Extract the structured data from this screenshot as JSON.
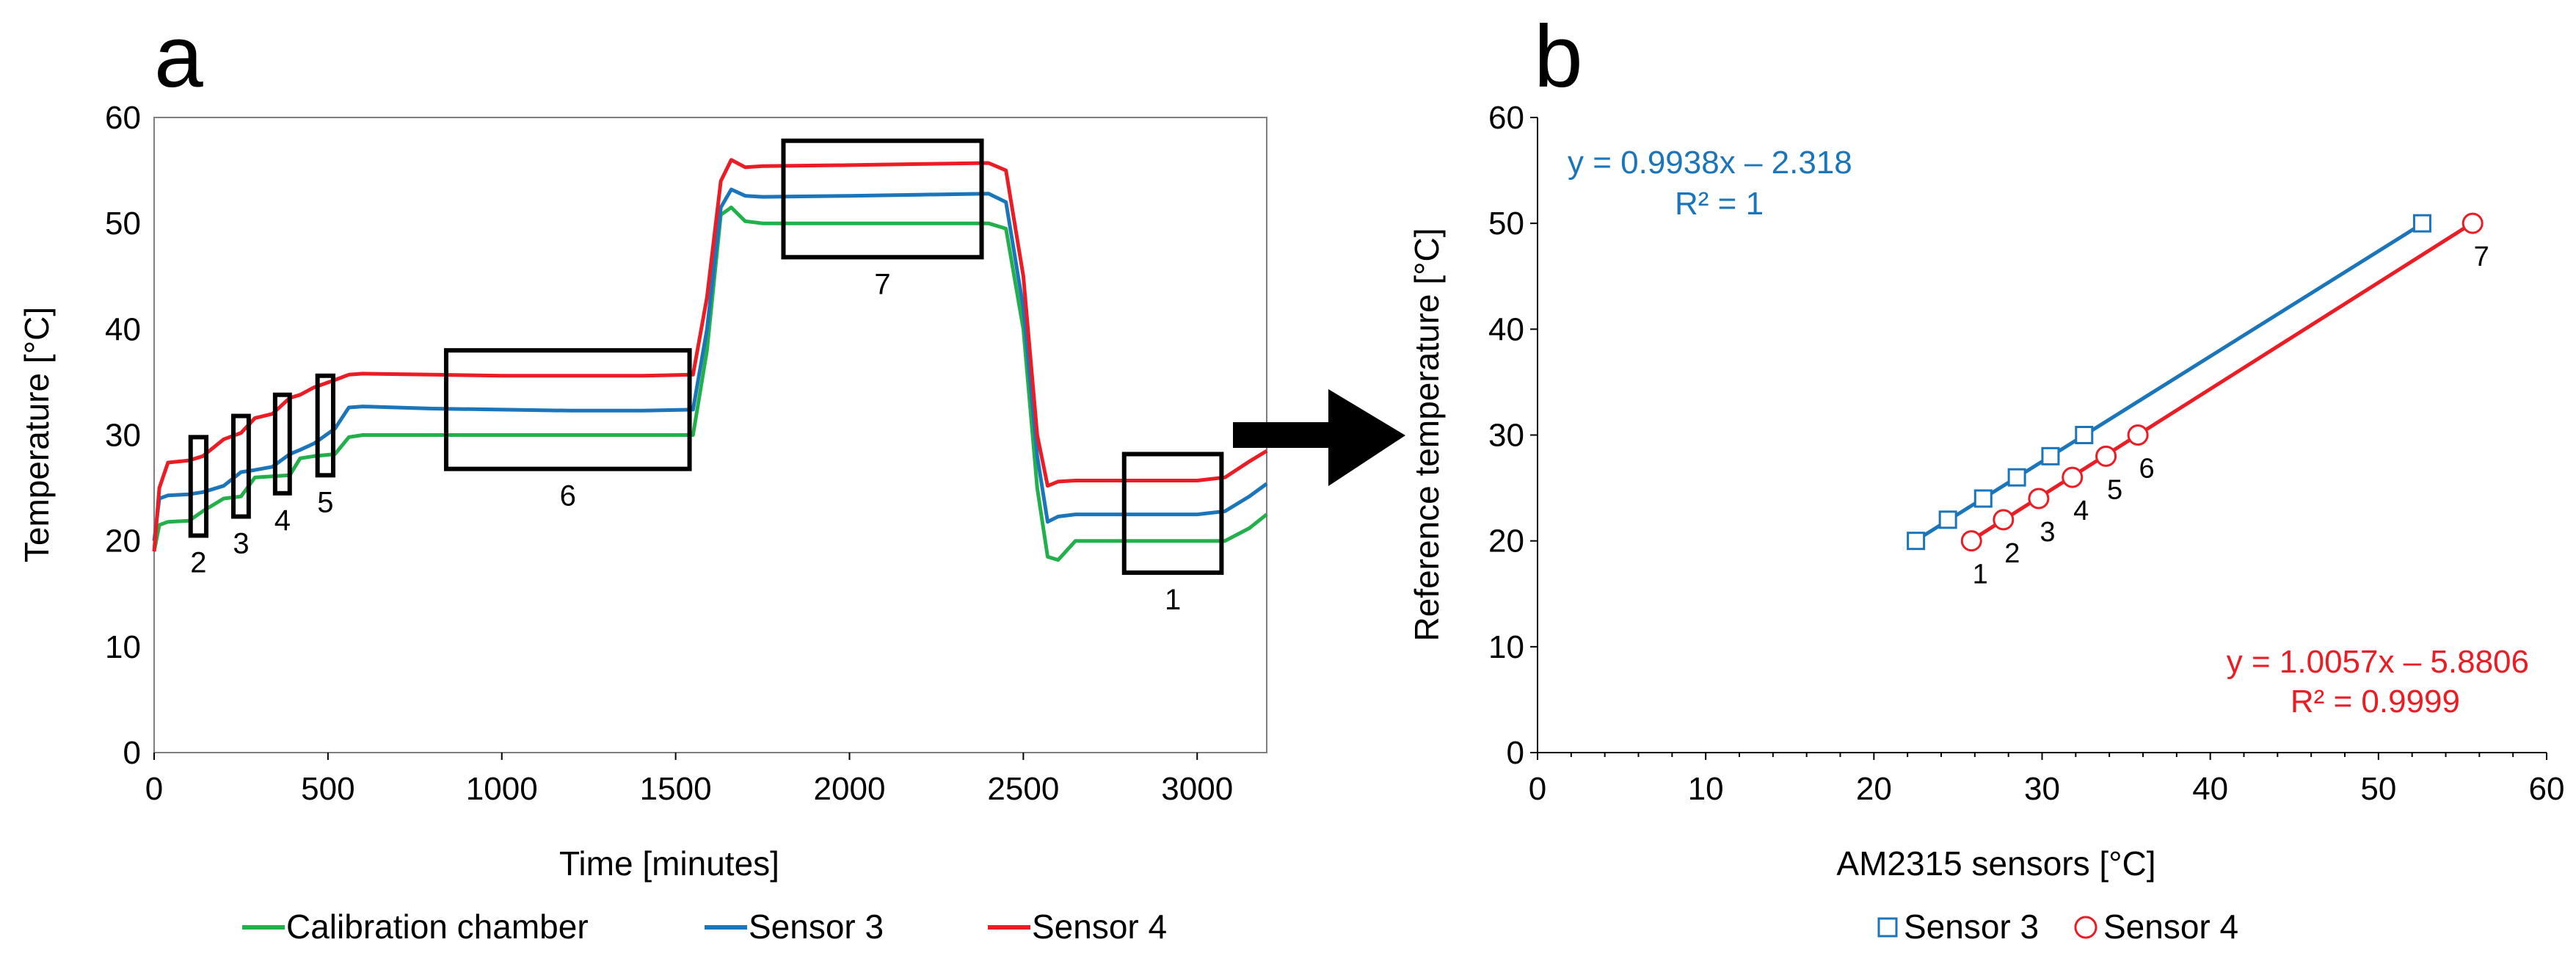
{
  "figure": {
    "panel_a_label": "a",
    "panel_b_label": "b"
  },
  "colors": {
    "calibration": "#22b04a",
    "sensor3": "#1a75bb",
    "sensor4": "#ec1c24",
    "axis": "#000000",
    "box": "#000000"
  },
  "chart_data": [
    {
      "type": "line",
      "panel": "a",
      "xlabel": "Time [minutes]",
      "ylabel": "Temperature [°C]",
      "xlim": [
        0,
        3200
      ],
      "ylim": [
        0,
        60
      ],
      "xticks": [
        0,
        500,
        1000,
        1500,
        2000,
        2500,
        3000
      ],
      "yticks": [
        0,
        10,
        20,
        30,
        40,
        50,
        60
      ],
      "grid": false,
      "legend_position": "bottom",
      "series": [
        {
          "name": "Calibration chamber",
          "color": "#22b04a",
          "x": [
            0,
            15,
            40,
            100,
            140,
            200,
            250,
            290,
            340,
            390,
            420,
            460,
            520,
            560,
            600,
            800,
            1000,
            1200,
            1400,
            1550,
            1590,
            1630,
            1660,
            1700,
            1750,
            2000,
            2200,
            2400,
            2450,
            2500,
            2540,
            2570,
            2600,
            2650,
            2700,
            2800,
            3000,
            3080,
            3150,
            3200
          ],
          "y": [
            19,
            21.5,
            21.8,
            21.9,
            22.8,
            24,
            24.2,
            26,
            26.1,
            26.2,
            27.8,
            28,
            28.2,
            29.8,
            30,
            30,
            30,
            30,
            30,
            30,
            38,
            50.8,
            51.5,
            50.2,
            50,
            50,
            50,
            50,
            49.5,
            40,
            25,
            18.5,
            18.2,
            20,
            20,
            20,
            20,
            20,
            21.2,
            22.5
          ]
        },
        {
          "name": "Sensor 3",
          "color": "#1a75bb",
          "x": [
            0,
            15,
            40,
            100,
            140,
            200,
            250,
            290,
            340,
            390,
            420,
            460,
            520,
            560,
            600,
            800,
            1000,
            1200,
            1400,
            1550,
            1590,
            1630,
            1660,
            1700,
            1750,
            2000,
            2200,
            2400,
            2450,
            2500,
            2540,
            2570,
            2600,
            2650,
            2700,
            2800,
            3000,
            3080,
            3150,
            3200
          ],
          "y": [
            20,
            24,
            24.3,
            24.4,
            24.6,
            25.2,
            26.5,
            26.7,
            27,
            28.2,
            28.6,
            29.2,
            30.6,
            32.6,
            32.7,
            32.5,
            32.4,
            32.3,
            32.3,
            32.4,
            40,
            51.5,
            53.2,
            52.6,
            52.5,
            52.6,
            52.7,
            52.8,
            52,
            42,
            28,
            21.8,
            22.3,
            22.5,
            22.5,
            22.5,
            22.5,
            22.8,
            24.2,
            25.4
          ]
        },
        {
          "name": "Sensor 4",
          "color": "#ec1c24",
          "x": [
            0,
            15,
            40,
            100,
            140,
            200,
            250,
            290,
            340,
            390,
            420,
            460,
            520,
            560,
            600,
            800,
            1000,
            1200,
            1400,
            1550,
            1590,
            1630,
            1660,
            1700,
            1750,
            2000,
            2200,
            2400,
            2450,
            2500,
            2540,
            2570,
            2600,
            2650,
            2700,
            2800,
            3000,
            3080,
            3150,
            3200
          ],
          "y": [
            19,
            25,
            27.4,
            27.6,
            28,
            29.6,
            30.2,
            31.6,
            32,
            33.5,
            33.8,
            34.5,
            35.2,
            35.7,
            35.8,
            35.7,
            35.6,
            35.6,
            35.6,
            35.7,
            43,
            54,
            56,
            55.3,
            55.4,
            55.5,
            55.6,
            55.7,
            55,
            45,
            30,
            25.2,
            25.6,
            25.7,
            25.7,
            25.7,
            25.7,
            26,
            27.5,
            28.5
          ]
        }
      ],
      "annotations": [
        {
          "label": "2",
          "x0": 105,
          "x1": 150,
          "y0": 20.5,
          "y1": 29.8
        },
        {
          "label": "3",
          "x0": 228,
          "x1": 272,
          "y0": 22.3,
          "y1": 31.8
        },
        {
          "label": "4",
          "x0": 348,
          "x1": 390,
          "y0": 24.5,
          "y1": 33.8
        },
        {
          "label": "5",
          "x0": 470,
          "x1": 515,
          "y0": 26.2,
          "y1": 35.6
        },
        {
          "label": "6",
          "x0": 840,
          "x1": 1540,
          "y0": 26.8,
          "y1": 38
        },
        {
          "label": "7",
          "x0": 1810,
          "x1": 2380,
          "y0": 46.8,
          "y1": 57.8
        },
        {
          "label": "1",
          "x0": 2790,
          "x1": 3070,
          "y0": 17,
          "y1": 28.2
        }
      ]
    },
    {
      "type": "scatter",
      "panel": "b",
      "xlabel": "AM2315 sensors [°C]",
      "ylabel": "Reference temperature [°C]",
      "xlim": [
        0,
        60
      ],
      "ylim": [
        0,
        60
      ],
      "xticks": [
        0,
        10,
        20,
        30,
        40,
        50,
        60
      ],
      "yticks": [
        0,
        10,
        20,
        30,
        40,
        50,
        60
      ],
      "grid": false,
      "legend_position": "bottom",
      "series": [
        {
          "name": "Sensor 3",
          "color": "#1a75bb",
          "marker": "square",
          "x": [
            22.5,
            24.4,
            26.5,
            28.5,
            30.5,
            32.5,
            52.6
          ],
          "y": [
            20,
            22,
            24,
            26,
            28,
            30,
            50
          ],
          "fit": {
            "slope": 0.9938,
            "intercept": -2.318,
            "x_range": [
              22.5,
              52.6
            ]
          },
          "equation": "y = 0.9938x – 2.318",
          "r2": "R² = 1"
        },
        {
          "name": "Sensor 4",
          "color": "#ec1c24",
          "marker": "circle",
          "x": [
            25.8,
            27.7,
            29.8,
            31.8,
            33.8,
            35.7,
            55.6
          ],
          "y": [
            20,
            22,
            24,
            26,
            28,
            30,
            50
          ],
          "point_labels": [
            "1",
            "2",
            "3",
            "4",
            "5",
            "6",
            "7"
          ],
          "fit": {
            "slope": 1.0057,
            "intercept": -5.8806,
            "x_range": [
              25.8,
              55.6
            ]
          },
          "equation": "y = 1.0057x – 5.8806",
          "r2": "R² = 0.9999"
        }
      ]
    }
  ]
}
